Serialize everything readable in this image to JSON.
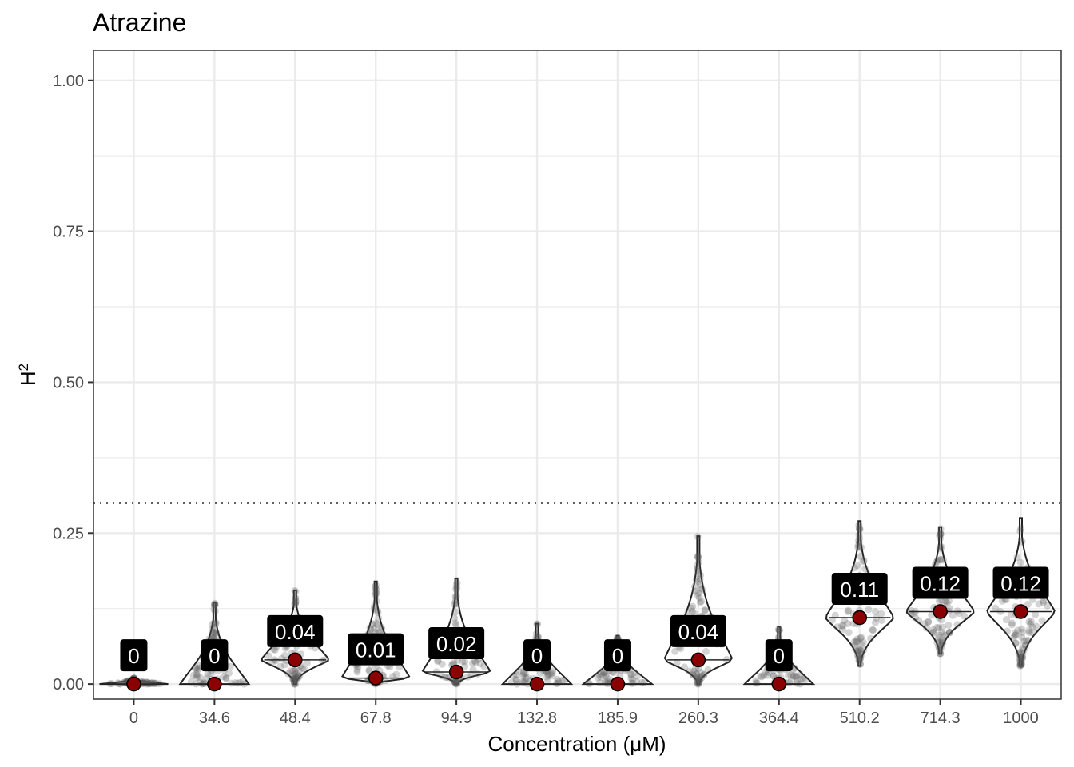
{
  "chart_data": {
    "type": "violin",
    "title": "Atrazine",
    "xlabel": "Concentration (μM)",
    "ylabel": "H",
    "ylabel_superscript": "2",
    "categories": [
      "0",
      "34.6",
      "48.4",
      "67.8",
      "94.9",
      "132.8",
      "185.9",
      "260.3",
      "364.4",
      "510.2",
      "714.3",
      "1000"
    ],
    "median_values": [
      0,
      0,
      0.04,
      0.01,
      0.02,
      0,
      0,
      0.04,
      0,
      0.11,
      0.12,
      0.12
    ],
    "median_labels": [
      "0",
      "0",
      "0.04",
      "0.01",
      "0.02",
      "0",
      "0",
      "0.04",
      "0",
      "0.11",
      "0.12",
      "0.12"
    ],
    "y_max": [
      0.01,
      0.135,
      0.155,
      0.17,
      0.175,
      0.1,
      0.08,
      0.245,
      0.095,
      0.27,
      0.26,
      0.275
    ],
    "y_min": [
      0,
      0,
      0,
      0,
      0,
      0,
      0,
      0,
      0,
      0.03,
      0.05,
      0.03
    ],
    "ylim": [
      -0.025,
      1.05
    ],
    "yticks": [
      0.0,
      0.25,
      0.5,
      0.75,
      1.0
    ],
    "ytick_labels": [
      "0.00",
      "0.25",
      "0.50",
      "0.75",
      "1.00"
    ],
    "threshold_line": 0.3,
    "grid": true,
    "colors": {
      "median_point": "#8b0000",
      "label_box": "#000000",
      "label_text": "#ffffff",
      "violin_outline": "#222222",
      "points": "#555555",
      "grid": "#ebebeb"
    }
  }
}
